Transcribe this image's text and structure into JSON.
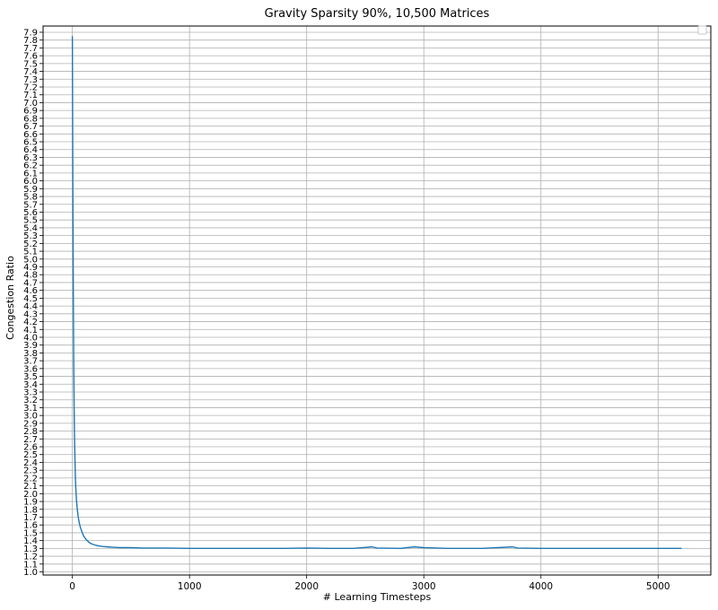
{
  "chart_data": {
    "type": "line",
    "title": "Gravity Sparsity 90%, 10,500 Matrices",
    "xlabel": "# Learning Timesteps",
    "ylabel": "Congestion Ratio",
    "xlim": [
      -250,
      5450
    ],
    "ylim": [
      0.96,
      7.98
    ],
    "xticks": [
      0,
      1000,
      2000,
      3000,
      4000,
      5000
    ],
    "xtick_labels": [
      "0",
      "1000",
      "2000",
      "3000",
      "4000",
      "5000"
    ],
    "yticks": [
      1.0,
      1.1,
      1.2,
      1.3,
      1.4,
      1.5,
      1.6,
      1.7,
      1.8,
      1.9,
      2.0,
      2.1,
      2.2,
      2.3,
      2.4,
      2.5,
      2.6,
      2.7,
      2.8,
      2.9,
      3.0,
      3.1,
      3.2,
      3.3,
      3.4,
      3.5,
      3.6,
      3.7,
      3.8,
      3.9,
      4.0,
      4.1,
      4.2,
      4.3,
      4.4,
      4.5,
      4.6,
      4.7,
      4.8,
      4.9,
      5.0,
      5.1,
      5.2,
      5.3,
      5.4,
      5.5,
      5.6,
      5.7,
      5.8,
      5.9,
      6.0,
      6.1,
      6.2,
      6.3,
      6.4,
      6.5,
      6.6,
      6.7,
      6.8,
      6.9,
      7.0,
      7.1,
      7.2,
      7.3,
      7.4,
      7.5,
      7.6,
      7.7,
      7.8,
      7.9
    ],
    "ytick_labels": [
      "1.0",
      "1.1",
      "1.2",
      "1.3",
      "1.4",
      "1.5",
      "1.6",
      "1.7",
      "1.8",
      "1.9",
      "2.0",
      "2.1",
      "2.2",
      "2.3",
      "2.4",
      "2.5",
      "2.6",
      "2.7",
      "2.8",
      "2.9",
      "3.0",
      "3.1",
      "3.2",
      "3.3",
      "3.4",
      "3.5",
      "3.6",
      "3.7",
      "3.8",
      "3.9",
      "4.0",
      "4.1",
      "4.2",
      "4.3",
      "4.4",
      "4.5",
      "4.6",
      "4.7",
      "4.8",
      "4.9",
      "5.0",
      "5.1",
      "5.2",
      "5.3",
      "5.4",
      "5.5",
      "5.6",
      "5.7",
      "5.8",
      "5.9",
      "6.0",
      "6.1",
      "6.2",
      "6.3",
      "6.4",
      "6.5",
      "6.6",
      "6.7",
      "6.8",
      "6.9",
      "7.0",
      "7.1",
      "7.2",
      "7.3",
      "7.4",
      "7.5",
      "7.6",
      "7.7",
      "7.8",
      "7.9"
    ],
    "grid": true,
    "legend": "top-right (empty)",
    "series": [
      {
        "color": "#1f77b4",
        "x": [
          0,
          2,
          4,
          6,
          8,
          10,
          12,
          15,
          18,
          22,
          26,
          30,
          35,
          40,
          45,
          50,
          60,
          70,
          80,
          90,
          100,
          120,
          140,
          160,
          180,
          200,
          230,
          260,
          300,
          350,
          400,
          500,
          600,
          800,
          1000,
          1200,
          1500,
          1800,
          2000,
          2200,
          2400,
          2560,
          2600,
          2800,
          2920,
          3000,
          3200,
          3500,
          3760,
          3800,
          4000,
          4200,
          4500,
          4800,
          5000,
          5200
        ],
        "y": [
          7.85,
          6.9,
          6.0,
          5.3,
          4.6,
          4.05,
          3.6,
          3.1,
          2.75,
          2.45,
          2.2,
          2.05,
          1.92,
          1.83,
          1.76,
          1.7,
          1.62,
          1.56,
          1.52,
          1.48,
          1.45,
          1.41,
          1.38,
          1.36,
          1.35,
          1.34,
          1.33,
          1.325,
          1.32,
          1.315,
          1.31,
          1.31,
          1.305,
          1.305,
          1.3,
          1.3,
          1.3,
          1.3,
          1.305,
          1.3,
          1.3,
          1.32,
          1.305,
          1.3,
          1.32,
          1.31,
          1.3,
          1.3,
          1.32,
          1.305,
          1.3,
          1.3,
          1.3,
          1.3,
          1.3,
          1.3
        ]
      }
    ]
  }
}
